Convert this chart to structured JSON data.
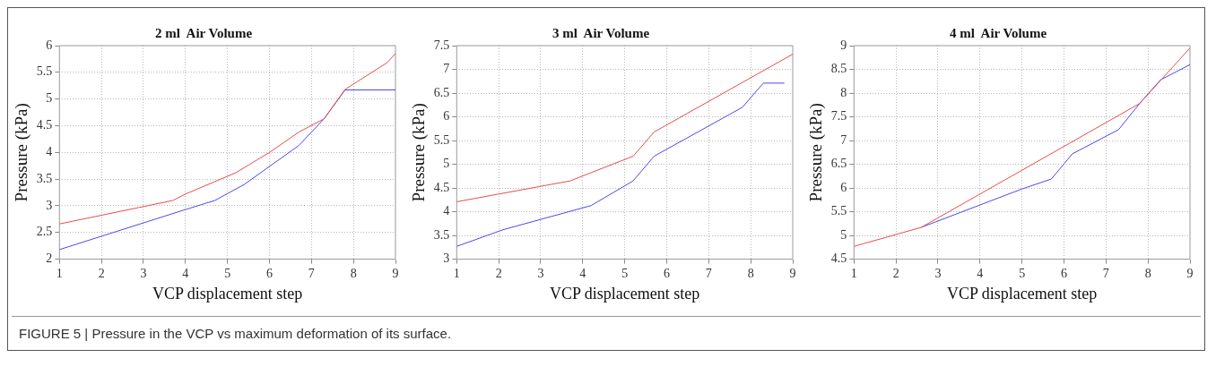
{
  "chart_data": [
    {
      "type": "line",
      "title": "2 ml  Air Volume",
      "xlabel": "VCP displacement step",
      "ylabel": "Pressure (kPa)",
      "xlim": [
        1,
        9
      ],
      "xticks": [
        1,
        2,
        3,
        4,
        5,
        6,
        7,
        8,
        9
      ],
      "ylim": [
        2,
        6
      ],
      "yticks": [
        2,
        2.5,
        3,
        3.5,
        4,
        4.5,
        5,
        5.5,
        6
      ],
      "grid": true,
      "legend": false,
      "marker": "none",
      "line_style": "solid",
      "series": [
        {
          "color": "#ec4a4e",
          "x": [
            1,
            3.7,
            4,
            5.2,
            6,
            6.7,
            7.3,
            7.8,
            8.8,
            9
          ],
          "values": [
            2.66,
            3.1,
            3.22,
            3.62,
            4.0,
            4.38,
            4.63,
            5.18,
            5.68,
            5.85
          ]
        },
        {
          "color": "#4a4aec",
          "x": [
            1,
            4,
            4.7,
            5.4,
            6.7,
            7.3,
            7.8,
            9
          ],
          "values": [
            2.18,
            2.93,
            3.1,
            3.4,
            4.13,
            4.63,
            5.17,
            5.17
          ]
        }
      ],
      "annotations": [
        "FIGURE 5 |  Pressure in the VCP vs maximum deformation of its surface."
      ]
    },
    {
      "type": "line",
      "title": "3 ml  Air Volume",
      "xlabel": "VCP displacement step",
      "ylabel": "Pressure (kPa)",
      "xlim": [
        1,
        9
      ],
      "xticks": [
        1,
        2,
        3,
        4,
        5,
        6,
        7,
        8,
        9
      ],
      "ylim": [
        3,
        7.5
      ],
      "yticks": [
        3,
        3.5,
        4,
        4.5,
        5,
        5.5,
        6,
        6.5,
        7,
        7.5
      ],
      "grid": true,
      "legend": false,
      "marker": "none",
      "line_style": "solid",
      "series": [
        {
          "color": "#ec4a4e",
          "x": [
            1,
            3.7,
            5.2,
            5.7,
            9
          ],
          "values": [
            4.21,
            4.65,
            5.17,
            5.68,
            7.32
          ]
        },
        {
          "color": "#4a4aec",
          "x": [
            1,
            2.1,
            4.2,
            5.2,
            5.7,
            7.8,
            8.3,
            8.8
          ],
          "values": [
            3.27,
            3.62,
            4.13,
            4.65,
            5.17,
            6.2,
            6.71,
            6.71
          ]
        }
      ]
    },
    {
      "type": "line",
      "title": "4 ml  Air Volume",
      "xlabel": "VCP displacement step",
      "ylabel": "Pressure (kPa)",
      "xlim": [
        1,
        9
      ],
      "xticks": [
        1,
        2,
        3,
        4,
        5,
        6,
        7,
        8,
        9
      ],
      "ylim": [
        4.5,
        9
      ],
      "yticks": [
        4.5,
        5,
        5.5,
        6,
        6.5,
        7,
        7.5,
        8,
        8.5,
        9
      ],
      "grid": true,
      "legend": false,
      "marker": "none",
      "line_style": "solid",
      "series": [
        {
          "color": "#ec4a4e",
          "x": [
            1,
            2,
            2.6,
            7.8,
            9
          ],
          "values": [
            4.77,
            5.02,
            5.17,
            7.78,
            8.95
          ]
        },
        {
          "color": "#4a4aec",
          "x": [
            2.6,
            5,
            5.7,
            6.2,
            7.3,
            7.8,
            8.3,
            9
          ],
          "values": [
            5.17,
            5.98,
            6.19,
            6.72,
            7.23,
            7.78,
            8.28,
            8.6
          ]
        }
      ]
    }
  ]
}
